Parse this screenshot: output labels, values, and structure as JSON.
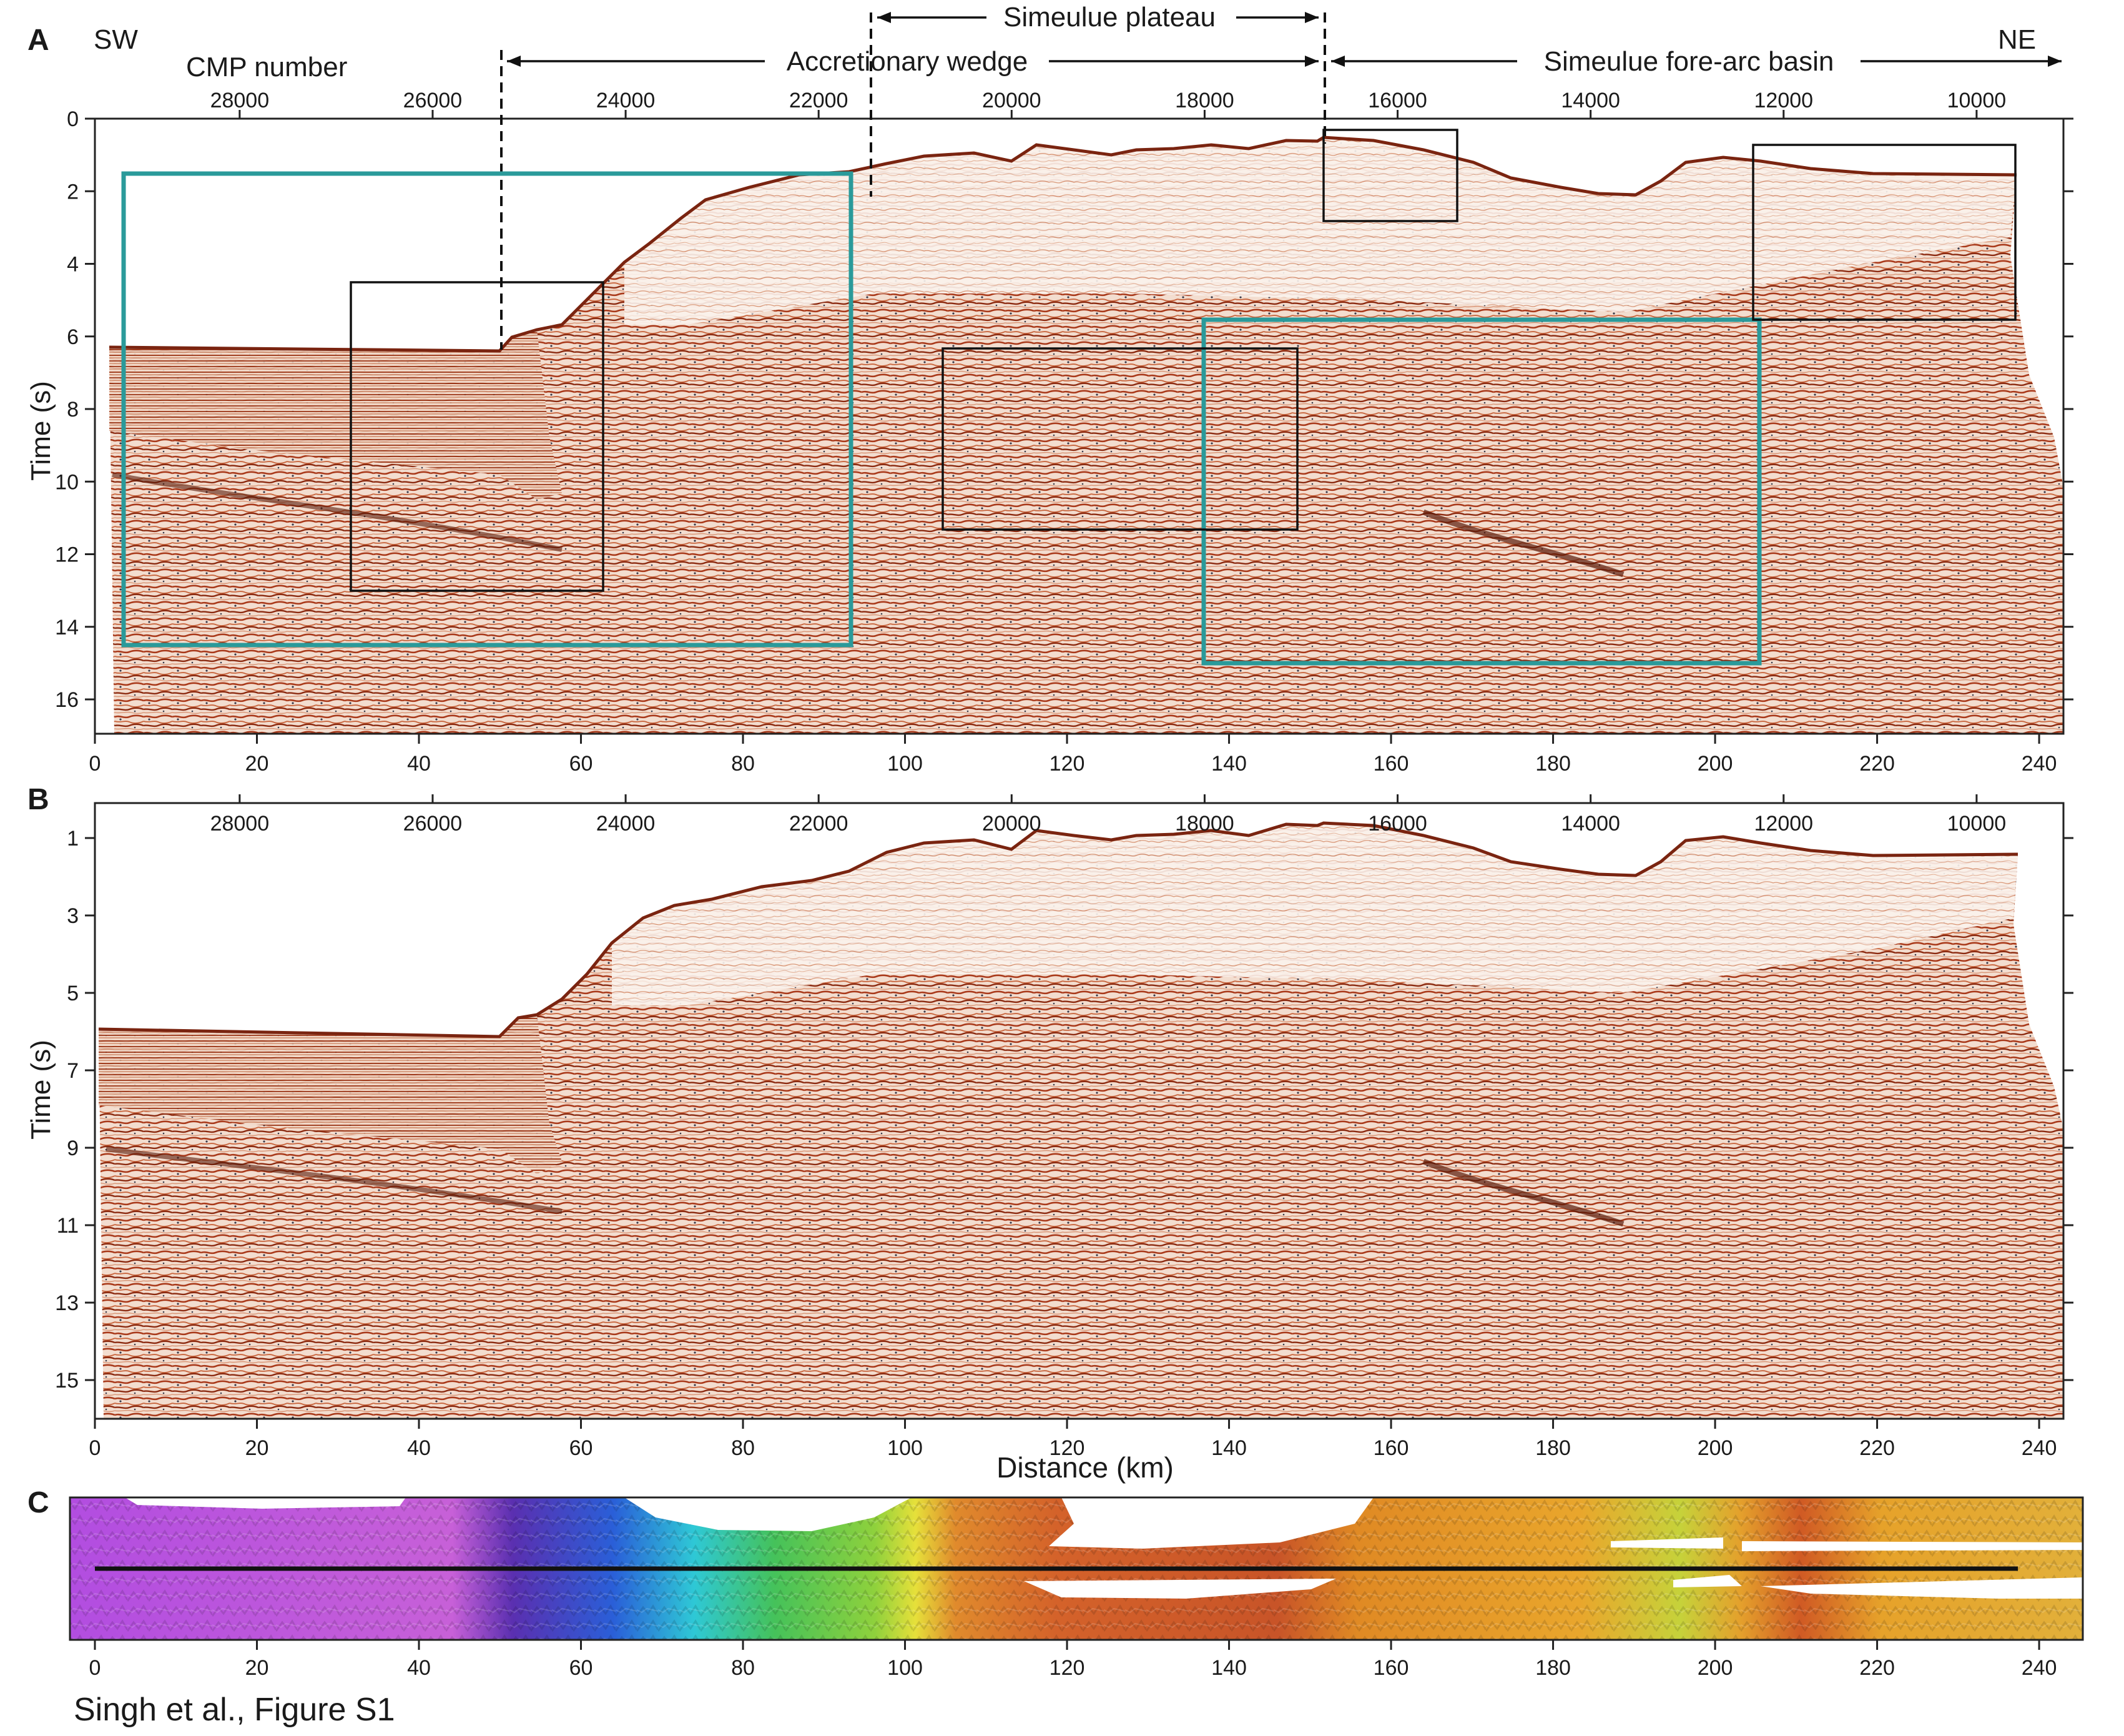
{
  "panels": {
    "A": {
      "label": "A",
      "direction_left": "SW",
      "direction_right": "NE",
      "cmp_axis_title": "CMP number",
      "cmp_ticks": [
        "28000",
        "26000",
        "24000",
        "22000",
        "20000",
        "18000",
        "16000",
        "14000",
        "12000",
        "10000"
      ],
      "ylabel": "Time (s)",
      "time_ticks": [
        "0",
        "2",
        "4",
        "6",
        "8",
        "10",
        "12",
        "14",
        "16"
      ],
      "distance_ticks": [
        "0",
        "20",
        "40",
        "60",
        "80",
        "100",
        "120",
        "140",
        "160",
        "180",
        "200",
        "220",
        "240"
      ],
      "annotations": {
        "accretionary_wedge": "Accretionary wedge",
        "simeulue_plateau": "Simeulue plateau",
        "forearc_basin": "Simeulue fore-arc basin"
      }
    },
    "B": {
      "label": "B",
      "cmp_ticks": [
        "28000",
        "26000",
        "24000",
        "22000",
        "20000",
        "18000",
        "16000",
        "14000",
        "12000",
        "10000"
      ],
      "ylabel": "Time (s)",
      "time_ticks": [
        "1",
        "3",
        "5",
        "7",
        "9",
        "11",
        "13",
        "15"
      ],
      "distance_ticks": [
        "0",
        "20",
        "40",
        "60",
        "80",
        "100",
        "120",
        "140",
        "160",
        "180",
        "200",
        "220",
        "240"
      ],
      "xlabel": "Distance (km)"
    },
    "C": {
      "label": "C",
      "distance_ticks": [
        "0",
        "20",
        "40",
        "60",
        "80",
        "100",
        "120",
        "140",
        "160",
        "180",
        "200",
        "220",
        "240"
      ]
    }
  },
  "caption": "Singh et al., Figure S1",
  "colors": {
    "highlight_box": "#2a9a9a",
    "detail_box": "#111111",
    "seismic_red": "#b8441f",
    "seismic_light": "#f4e6dc"
  }
}
